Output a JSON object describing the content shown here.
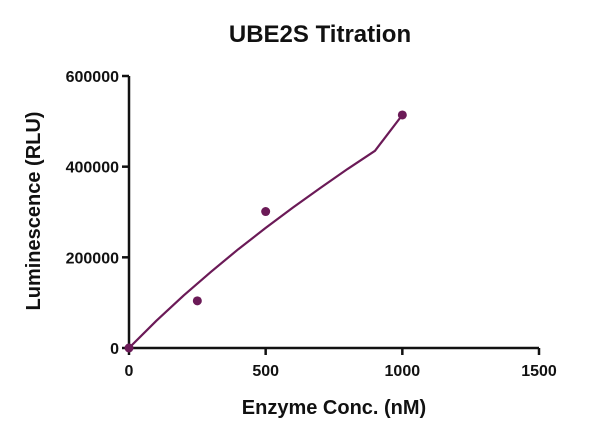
{
  "chart_data": {
    "type": "scatter",
    "title": "UBE2S Titration",
    "xlabel": "Enzyme Conc. (nM)",
    "ylabel": "Luminescence (RLU)",
    "xlim": [
      0,
      1500
    ],
    "ylim": [
      0,
      600000
    ],
    "x_ticks": [
      0,
      500,
      1000,
      1500
    ],
    "x_tick_labels": [
      "0",
      "500",
      "1000",
      "1500"
    ],
    "y_ticks": [
      0,
      200000,
      400000,
      600000
    ],
    "y_tick_labels": [
      "0",
      "200000",
      "400000",
      "600000"
    ],
    "grid": false,
    "legend": "none",
    "series": [
      {
        "x": [
          0,
          250,
          500,
          1000
        ],
        "y": [
          0,
          104000,
          301000,
          514000
        ],
        "fit_curve": {
          "x": [
            0,
            100,
            200,
            300,
            400,
            500,
            600,
            700,
            800,
            900,
            1000
          ],
          "y": [
            0,
            60000,
            116000,
            168000,
            218000,
            265000,
            310000,
            353000,
            395000,
            435000,
            514000
          ]
        }
      }
    ],
    "colors": {
      "series": "#6b1a57",
      "axis": "#111111"
    }
  }
}
